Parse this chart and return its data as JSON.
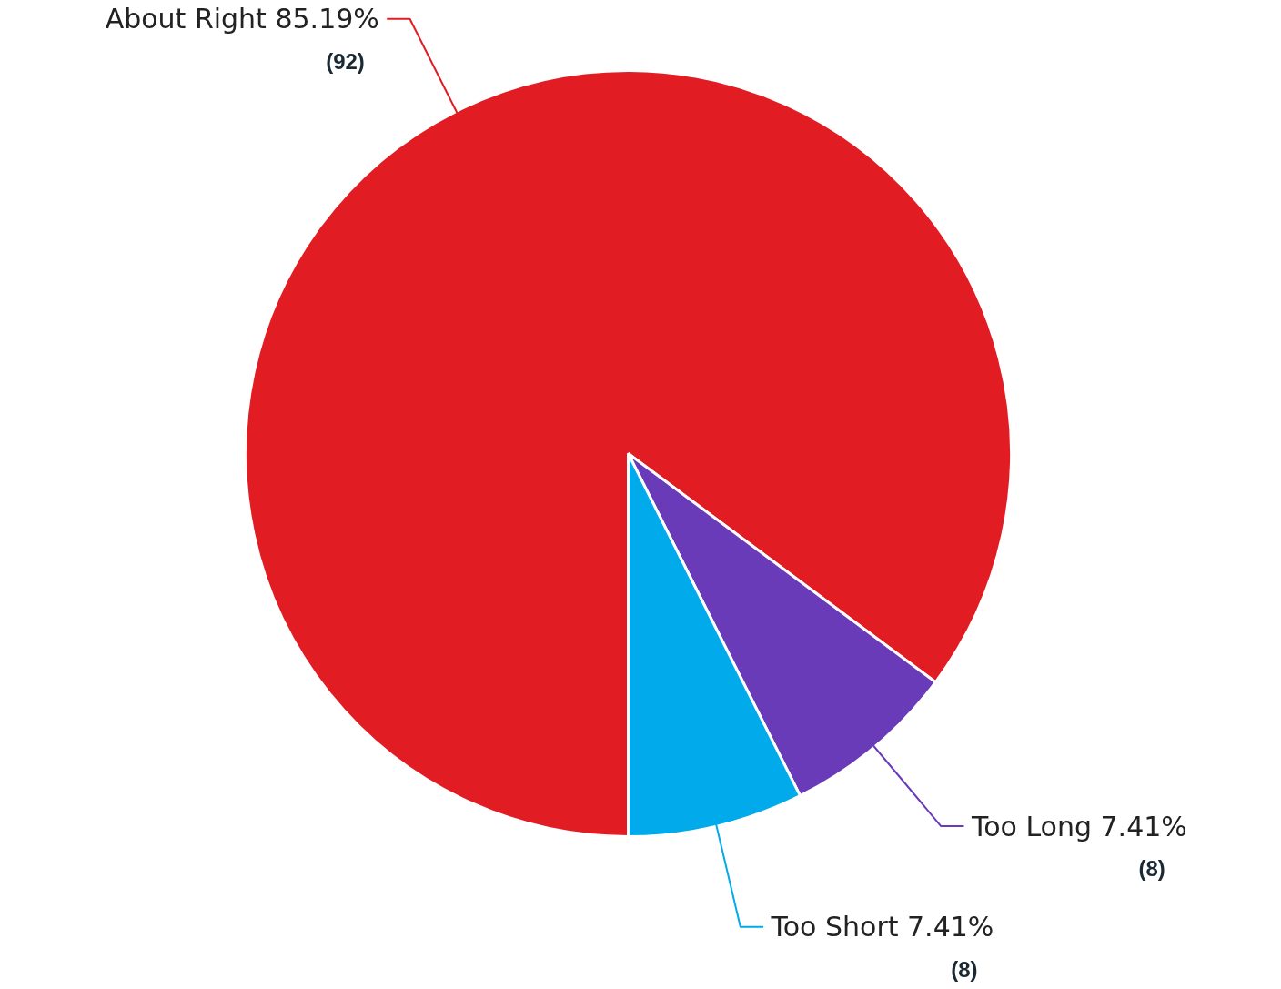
{
  "chart_data": {
    "type": "pie",
    "categories": [
      "About Right",
      "Too Long",
      "Too Short"
    ],
    "values": [
      85.19,
      7.41,
      7.41
    ],
    "colors": [
      "#e21c23",
      "#6a3bb8",
      "#00aaeb"
    ],
    "value_labels": [
      "85.19%",
      "7.41%",
      "7.41%"
    ],
    "annotations": [
      "(92)",
      "(8)",
      "(8)"
    ]
  }
}
